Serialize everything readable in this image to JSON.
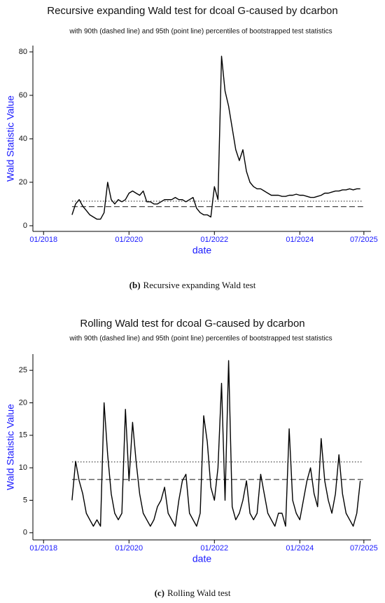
{
  "chart_data": [
    {
      "type": "line",
      "title": "Recursive expanding Wald test for dcoal G-caused by dcarbon",
      "subtitle": "with 90th (dashed line) and 95th (point line) percentiles of bootstrapped test statistics",
      "x_label": "date",
      "y_label": "Wald Statistic Value",
      "caption_label": "(b)",
      "caption": "Recursive expanding Wald test",
      "color": "#000000",
      "x": [
        "2018-09",
        "2018-10",
        "2018-11",
        "2018-12",
        "2019-01",
        "2019-02",
        "2019-03",
        "2019-04",
        "2019-05",
        "2019-06",
        "2019-07",
        "2019-08",
        "2019-09",
        "2019-10",
        "2019-11",
        "2019-12",
        "2020-01",
        "2020-02",
        "2020-03",
        "2020-04",
        "2020-05",
        "2020-06",
        "2020-07",
        "2020-08",
        "2020-09",
        "2020-10",
        "2020-11",
        "2020-12",
        "2021-01",
        "2021-02",
        "2021-03",
        "2021-04",
        "2021-05",
        "2021-06",
        "2021-07",
        "2021-08",
        "2021-09",
        "2021-10",
        "2021-11",
        "2021-12",
        "2022-01",
        "2022-02",
        "2022-03",
        "2022-04",
        "2022-05",
        "2022-06",
        "2022-07",
        "2022-08",
        "2022-09",
        "2022-10",
        "2022-11",
        "2022-12",
        "2023-01",
        "2023-02",
        "2023-03",
        "2023-04",
        "2023-05",
        "2023-06",
        "2023-07",
        "2023-08",
        "2023-09",
        "2023-10",
        "2023-11",
        "2023-12",
        "2024-01",
        "2024-02",
        "2024-03",
        "2024-04",
        "2024-05",
        "2024-06",
        "2024-07",
        "2024-08",
        "2024-09",
        "2024-10",
        "2024-11",
        "2024-12",
        "2025-01",
        "2025-02",
        "2025-03",
        "2025-04",
        "2025-05",
        "2025-06"
      ],
      "values": [
        5,
        10,
        12,
        9,
        7,
        5,
        4,
        3,
        3,
        6,
        20,
        12,
        10,
        12,
        11,
        12,
        15,
        16,
        15,
        14,
        16,
        11,
        11,
        10,
        10,
        11,
        12,
        12,
        12,
        13,
        12,
        12,
        11,
        12,
        13,
        8,
        6,
        5,
        5,
        4,
        18,
        12,
        78,
        62,
        55,
        45,
        35,
        30,
        35,
        25,
        20,
        18,
        17,
        17,
        16,
        15,
        14,
        14,
        14,
        13.5,
        13.5,
        14,
        14,
        14.5,
        14,
        14,
        13.5,
        13,
        13,
        13.5,
        14,
        15,
        15,
        15.5,
        16,
        16,
        16.5,
        16.5,
        17,
        16.5,
        17,
        17
      ],
      "reference_lines": [
        {
          "value": 8.8,
          "style": "dashed"
        },
        {
          "value": 11.3,
          "style": "dotted"
        }
      ],
      "xlim": [
        "2017-10",
        "2025-09"
      ],
      "xticks": [
        {
          "value": "2018-01",
          "label": "01/2018"
        },
        {
          "value": "2020-01",
          "label": "01/2020"
        },
        {
          "value": "2022-01",
          "label": "01/2022"
        },
        {
          "value": "2024-01",
          "label": "01/2024"
        },
        {
          "value": "2025-07",
          "label": "07/2025"
        }
      ],
      "ylim": [
        -2.6,
        82.9
      ],
      "yticks": [
        0,
        20,
        40,
        60,
        80
      ]
    },
    {
      "type": "line",
      "title": "Rolling Wald test for dcoal G-caused by dcarbon",
      "subtitle": "with 90th (dashed line) and 95th (point line) percentiles of bootstrapped test statistics",
      "x_label": "date",
      "y_label": "Wald Statistic Value",
      "caption_label": "(c)",
      "caption": "Rolling Wald test",
      "color": "#000000",
      "x": [
        "2018-09",
        "2018-10",
        "2018-11",
        "2018-12",
        "2019-01",
        "2019-02",
        "2019-03",
        "2019-04",
        "2019-05",
        "2019-06",
        "2019-07",
        "2019-08",
        "2019-09",
        "2019-10",
        "2019-11",
        "2019-12",
        "2020-01",
        "2020-02",
        "2020-03",
        "2020-04",
        "2020-05",
        "2020-06",
        "2020-07",
        "2020-08",
        "2020-09",
        "2020-10",
        "2020-11",
        "2020-12",
        "2021-01",
        "2021-02",
        "2021-03",
        "2021-04",
        "2021-05",
        "2021-06",
        "2021-07",
        "2021-08",
        "2021-09",
        "2021-10",
        "2021-11",
        "2021-12",
        "2022-01",
        "2022-02",
        "2022-03",
        "2022-04",
        "2022-05",
        "2022-06",
        "2022-07",
        "2022-08",
        "2022-09",
        "2022-10",
        "2022-11",
        "2022-12",
        "2023-01",
        "2023-02",
        "2023-03",
        "2023-04",
        "2023-05",
        "2023-06",
        "2023-07",
        "2023-08",
        "2023-09",
        "2023-10",
        "2023-11",
        "2023-12",
        "2024-01",
        "2024-02",
        "2024-03",
        "2024-04",
        "2024-05",
        "2024-06",
        "2024-07",
        "2024-08",
        "2024-09",
        "2024-10",
        "2024-11",
        "2024-12",
        "2025-01",
        "2025-02",
        "2025-03",
        "2025-04",
        "2025-05",
        "2025-06"
      ],
      "values": [
        5,
        11,
        8,
        6,
        3,
        2,
        1,
        2,
        1,
        20,
        12,
        6,
        3,
        2,
        3,
        19,
        8,
        17,
        11,
        6,
        3,
        2,
        1,
        2,
        4,
        5,
        7,
        3,
        2,
        1,
        5,
        8,
        9,
        3,
        2,
        1,
        3,
        18,
        14,
        7,
        5,
        10,
        23,
        5,
        26.5,
        4,
        2,
        3,
        5,
        8,
        3,
        2,
        3,
        9,
        6,
        3,
        2,
        1,
        3,
        3,
        1,
        16,
        5,
        3,
        2,
        5,
        8,
        10,
        6,
        4,
        14.5,
        8,
        5,
        3,
        6,
        12,
        6,
        3,
        2,
        1,
        3,
        8
      ],
      "reference_lines": [
        {
          "value": 8.2,
          "style": "dashed"
        },
        {
          "value": 10.9,
          "style": "dotted"
        }
      ],
      "xlim": [
        "2017-10",
        "2025-09"
      ],
      "xticks": [
        {
          "value": "2018-01",
          "label": "01/2018"
        },
        {
          "value": "2020-01",
          "label": "01/2020"
        },
        {
          "value": "2022-01",
          "label": "01/2022"
        },
        {
          "value": "2024-01",
          "label": "01/2024"
        },
        {
          "value": "2025-07",
          "label": "07/2025"
        }
      ],
      "ylim": [
        -1.1,
        27.5
      ],
      "yticks": [
        0,
        5,
        10,
        15,
        20,
        25
      ]
    }
  ]
}
